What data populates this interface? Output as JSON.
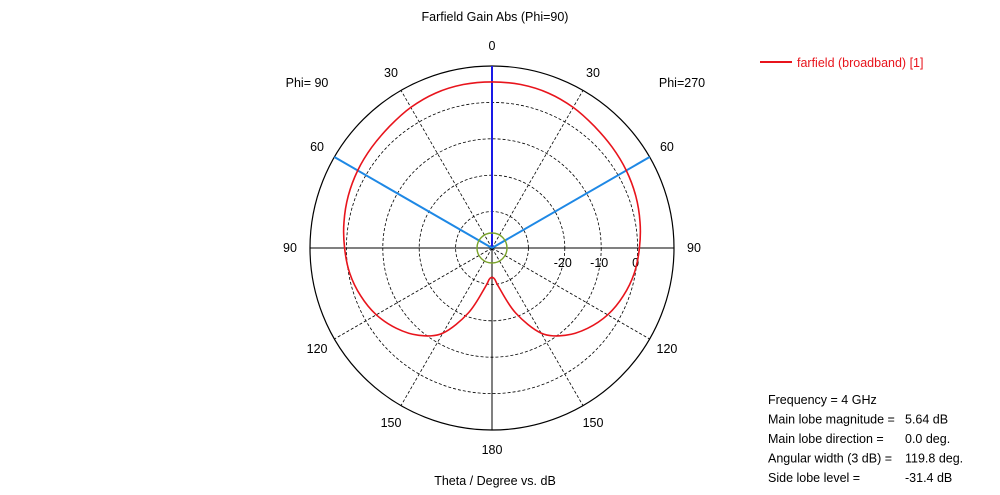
{
  "chart_data": {
    "type": "polar",
    "title": "Farfield Gain Abs (Phi=90)",
    "xlabel": "Theta / Degree vs. dB",
    "left_half_label": "Phi= 90",
    "right_half_label": "Phi=270",
    "radial_ticks": [
      "-20",
      "-10",
      "0"
    ],
    "radial_range_db": [
      -40,
      10
    ],
    "radial_ticks_db": [
      -30,
      -20,
      -10,
      0
    ],
    "angle_labels": [
      {
        "text": "0",
        "angle": 0
      },
      {
        "text": "30",
        "angle": -30
      },
      {
        "text": "30",
        "angle": 30
      },
      {
        "text": "60",
        "angle": -60
      },
      {
        "text": "60",
        "angle": 60
      },
      {
        "text": "90",
        "angle": -90
      },
      {
        "text": "90",
        "angle": 90
      },
      {
        "text": "120",
        "angle": -120
      },
      {
        "text": "120",
        "angle": 120
      },
      {
        "text": "150",
        "angle": -150
      },
      {
        "text": "150",
        "angle": 150
      },
      {
        "text": "180",
        "angle": 180
      }
    ],
    "series": [
      {
        "name": "farfield (broadband) [1]",
        "color": "#e8141c",
        "theta_deg": [
          0,
          10,
          20,
          30,
          40,
          50,
          60,
          70,
          80,
          90,
          100,
          110,
          120,
          130,
          140,
          150,
          160,
          170,
          175,
          180
        ],
        "gain_db": [
          5.64,
          5.6,
          5.3,
          4.6,
          3.7,
          3.1,
          2.6,
          2.0,
          1.3,
          0.5,
          -0.3,
          -1.6,
          -3.3,
          -5.7,
          -8.7,
          -13.0,
          -21.0,
          -29.0,
          -31.4,
          -32.0
        ]
      }
    ],
    "main_lobe_lines": {
      "color": "#1e88e5",
      "angles": [
        -60,
        60
      ]
    },
    "axis_line": {
      "color": "#1a1ae6",
      "angle": 0
    },
    "info_box": [
      {
        "label": "Frequency = 4 GHz",
        "value": ""
      },
      {
        "label": "Main lobe magnitude =",
        "value": "5.64 dB"
      },
      {
        "label": "Main lobe direction =",
        "value": "0.0 deg."
      },
      {
        "label": "Angular width (3 dB) =",
        "value": "119.8 deg."
      },
      {
        "label": "Side lobe level =",
        "value": "-31.4 dB"
      }
    ]
  }
}
